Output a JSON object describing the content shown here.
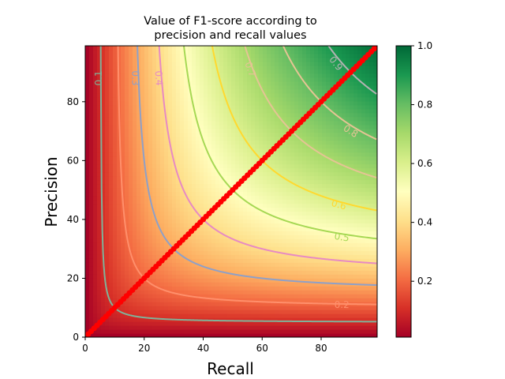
{
  "chart_data": {
    "type": "heatmap",
    "title_line1": "Value of F1-score according to",
    "title_line2": "precision and recall values",
    "xlabel": "Recall",
    "ylabel": "Precision",
    "xlim": [
      0,
      99
    ],
    "ylim": [
      0,
      99
    ],
    "x_ticks": [
      0,
      20,
      40,
      60,
      80
    ],
    "y_ticks": [
      0,
      20,
      40,
      60,
      80
    ],
    "colormap": "RdYlGn",
    "colorbar_range": [
      0.01,
      1.0
    ],
    "colorbar_ticks": [
      "0.2",
      "0.4",
      "0.6",
      "0.8",
      "1.0"
    ],
    "colorbar_tick_values": [
      0.2,
      0.4,
      0.6,
      0.8,
      1.0
    ],
    "contour_levels": [
      {
        "level": 0.1,
        "label": "0.1",
        "color": "#7fb39a",
        "label_at": [
          4.5,
          88
        ]
      },
      {
        "level": 0.2,
        "label": "0.2",
        "color": "#ff8f6b",
        "label_at": [
          87,
          11
        ]
      },
      {
        "level": 0.3,
        "label": "0.3",
        "color": "#8ea0c8",
        "label_at": [
          17,
          88
        ]
      },
      {
        "level": 0.4,
        "label": "0.4",
        "color": "#e78ac3",
        "label_at": [
          25,
          88
        ]
      },
      {
        "level": 0.5,
        "label": "0.5",
        "color": "#a6d854",
        "label_at": [
          87,
          34
        ]
      },
      {
        "level": 0.6,
        "label": "0.6",
        "color": "#ffd92f",
        "label_at": [
          86,
          45
        ]
      },
      {
        "level": 0.7,
        "label": "0.7",
        "color": "#e5c494",
        "label_at": [
          56,
          91
        ]
      },
      {
        "level": 0.8,
        "label": "0.8",
        "color": "#e5c494",
        "label_at": [
          90,
          70
        ]
      },
      {
        "level": 0.9,
        "label": "0.9",
        "color": "#b3b3b3",
        "label_at": [
          85,
          93
        ]
      }
    ],
    "series": [
      {
        "type": "scatter",
        "color": "#ff0000",
        "x_range": [
          1,
          99
        ],
        "step": 1,
        "relation": "y = x"
      }
    ],
    "grid": false
  }
}
